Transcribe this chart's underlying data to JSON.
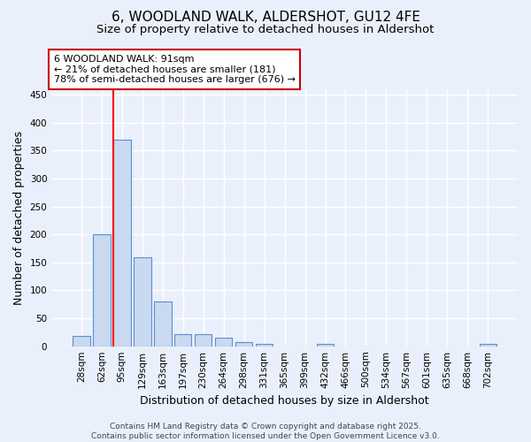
{
  "title_line1": "6, WOODLAND WALK, ALDERSHOT, GU12 4FE",
  "title_line2": "Size of property relative to detached houses in Aldershot",
  "xlabel": "Distribution of detached houses by size in Aldershot",
  "ylabel": "Number of detached properties",
  "categories": [
    "28sqm",
    "62sqm",
    "95sqm",
    "129sqm",
    "163sqm",
    "197sqm",
    "230sqm",
    "264sqm",
    "298sqm",
    "331sqm",
    "365sqm",
    "399sqm",
    "432sqm",
    "466sqm",
    "500sqm",
    "534sqm",
    "567sqm",
    "601sqm",
    "635sqm",
    "668sqm",
    "702sqm"
  ],
  "values": [
    18,
    200,
    370,
    160,
    80,
    22,
    22,
    15,
    8,
    5,
    0,
    0,
    5,
    0,
    0,
    0,
    0,
    0,
    0,
    0,
    5
  ],
  "bar_color": "#c9d9f0",
  "bar_edge_color": "#5b8fcf",
  "red_line_index": 2,
  "ylim": [
    0,
    460
  ],
  "yticks": [
    0,
    50,
    100,
    150,
    200,
    250,
    300,
    350,
    400,
    450
  ],
  "annotation_title": "6 WOODLAND WALK: 91sqm",
  "annotation_line1": "← 21% of detached houses are smaller (181)",
  "annotation_line2": "78% of semi-detached houses are larger (676) →",
  "annotation_box_color": "#ffffff",
  "annotation_box_edge_color": "#cc0000",
  "footer_line1": "Contains HM Land Registry data © Crown copyright and database right 2025.",
  "footer_line2": "Contains public sector information licensed under the Open Government Licence v3.0.",
  "background_color": "#eaf0fb",
  "grid_color": "#ffffff",
  "title_fontsize": 11,
  "subtitle_fontsize": 9.5,
  "axis_label_fontsize": 9,
  "tick_fontsize": 7.5,
  "annotation_fontsize": 8,
  "footer_fontsize": 6.5
}
